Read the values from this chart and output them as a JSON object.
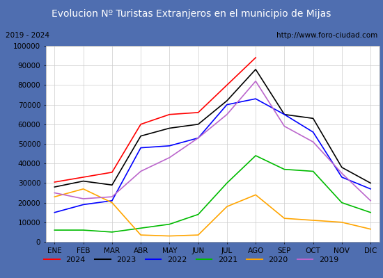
{
  "title": "Evolucion Nº Turistas Extranjeros en el municipio de Mijas",
  "subtitle_left": "2019 - 2024",
  "subtitle_right": "http://www.foro-ciudad.com",
  "x_labels": [
    "ENE",
    "FEB",
    "MAR",
    "ABR",
    "MAY",
    "JUN",
    "JUL",
    "AGO",
    "SEP",
    "OCT",
    "NOV",
    "DIC"
  ],
  "ylim": [
    0,
    100000
  ],
  "yticks": [
    0,
    10000,
    20000,
    30000,
    40000,
    50000,
    60000,
    70000,
    80000,
    90000,
    100000
  ],
  "series": {
    "2024": {
      "color": "#ff0000",
      "data": [
        30500,
        33000,
        35500,
        60000,
        65000,
        66000,
        80000,
        94000,
        null,
        null,
        null,
        null
      ]
    },
    "2023": {
      "color": "#000000",
      "data": [
        28000,
        31000,
        29000,
        54000,
        58000,
        60000,
        72000,
        88000,
        65000,
        63000,
        38000,
        30000
      ]
    },
    "2022": {
      "color": "#0000ff",
      "data": [
        15000,
        19000,
        21000,
        48000,
        49000,
        53000,
        70000,
        73000,
        65000,
        56000,
        33000,
        27000
      ]
    },
    "2021": {
      "color": "#00bb00",
      "data": [
        6000,
        6000,
        5000,
        7000,
        9000,
        14000,
        30000,
        44000,
        37000,
        36000,
        20000,
        15000
      ]
    },
    "2020": {
      "color": "#ffa500",
      "data": [
        23000,
        27000,
        20000,
        3500,
        3000,
        3500,
        18000,
        24000,
        12000,
        11000,
        10000,
        6500
      ]
    },
    "2019": {
      "color": "#bb66cc",
      "data": [
        25000,
        22000,
        23000,
        36000,
        43000,
        53000,
        65000,
        82000,
        59000,
        51000,
        35000,
        21000
      ]
    }
  },
  "title_bg": "#4f6eb0",
  "title_color": "#ffffff",
  "title_fontsize": 10,
  "plot_bg": "#ffffff",
  "grid_color": "#cccccc",
  "subtitle_bg": "#e8e8e8",
  "border_color": "#4f6eb0",
  "legend_order": [
    "2024",
    "2023",
    "2022",
    "2021",
    "2020",
    "2019"
  ],
  "fig_bg": "#4f6eb0"
}
